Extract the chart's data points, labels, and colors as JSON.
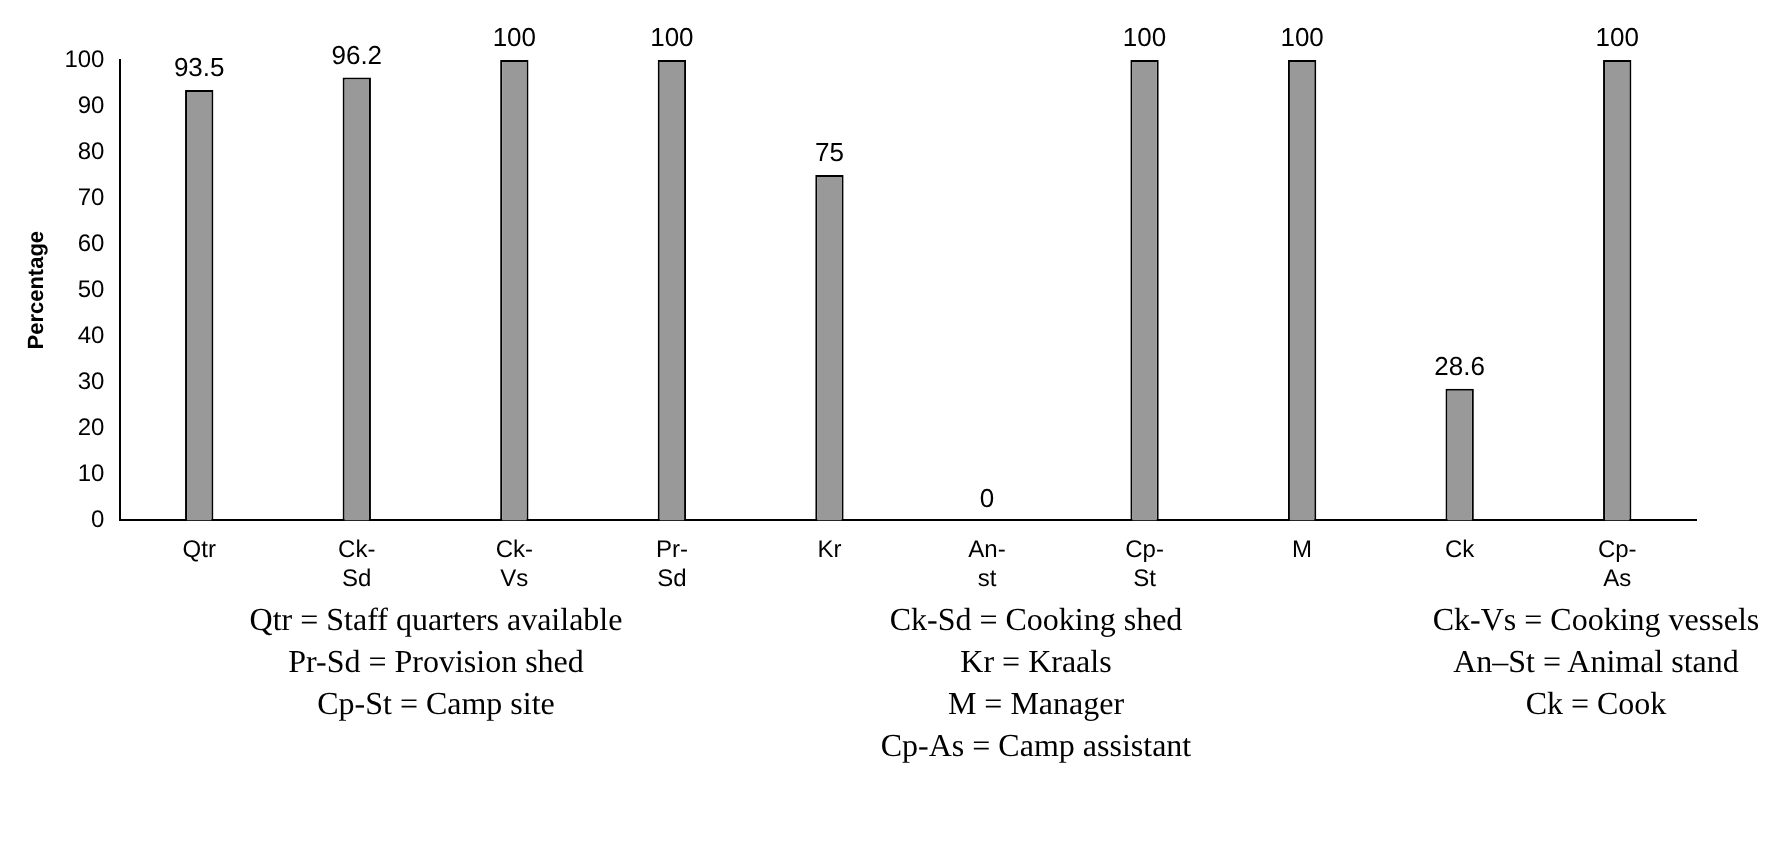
{
  "chart_data": {
    "type": "bar",
    "ylabel": "Percentage",
    "categories": [
      "Qtr",
      "Ck-Sd",
      "Ck-Vs",
      "Pr-Sd",
      "Kr",
      "An-st",
      "Cp-St",
      "M",
      "Ck",
      "Cp-As"
    ],
    "values": [
      93.5,
      96.2,
      100,
      100,
      75,
      0,
      100,
      100,
      28.6,
      100
    ],
    "color": "#999999",
    "ylim": [
      0,
      100
    ],
    "yticks": [
      0,
      10,
      20,
      30,
      40,
      50,
      60,
      70,
      80,
      90,
      100
    ],
    "grid": false,
    "legend": false,
    "data_labels": true,
    "annotations": [
      "Qtr = Staff quarters available",
      "Ck-Sd = Cooking shed",
      "Ck-Vs = Cooking vessels",
      "Pr-Sd = Provision shed",
      "Kr = Kraals",
      "An–St = Animal stand",
      "Cp-St = Camp site",
      "M = Manager",
      "Ck = Cook",
      "Cp-As = Camp assistant"
    ]
  }
}
